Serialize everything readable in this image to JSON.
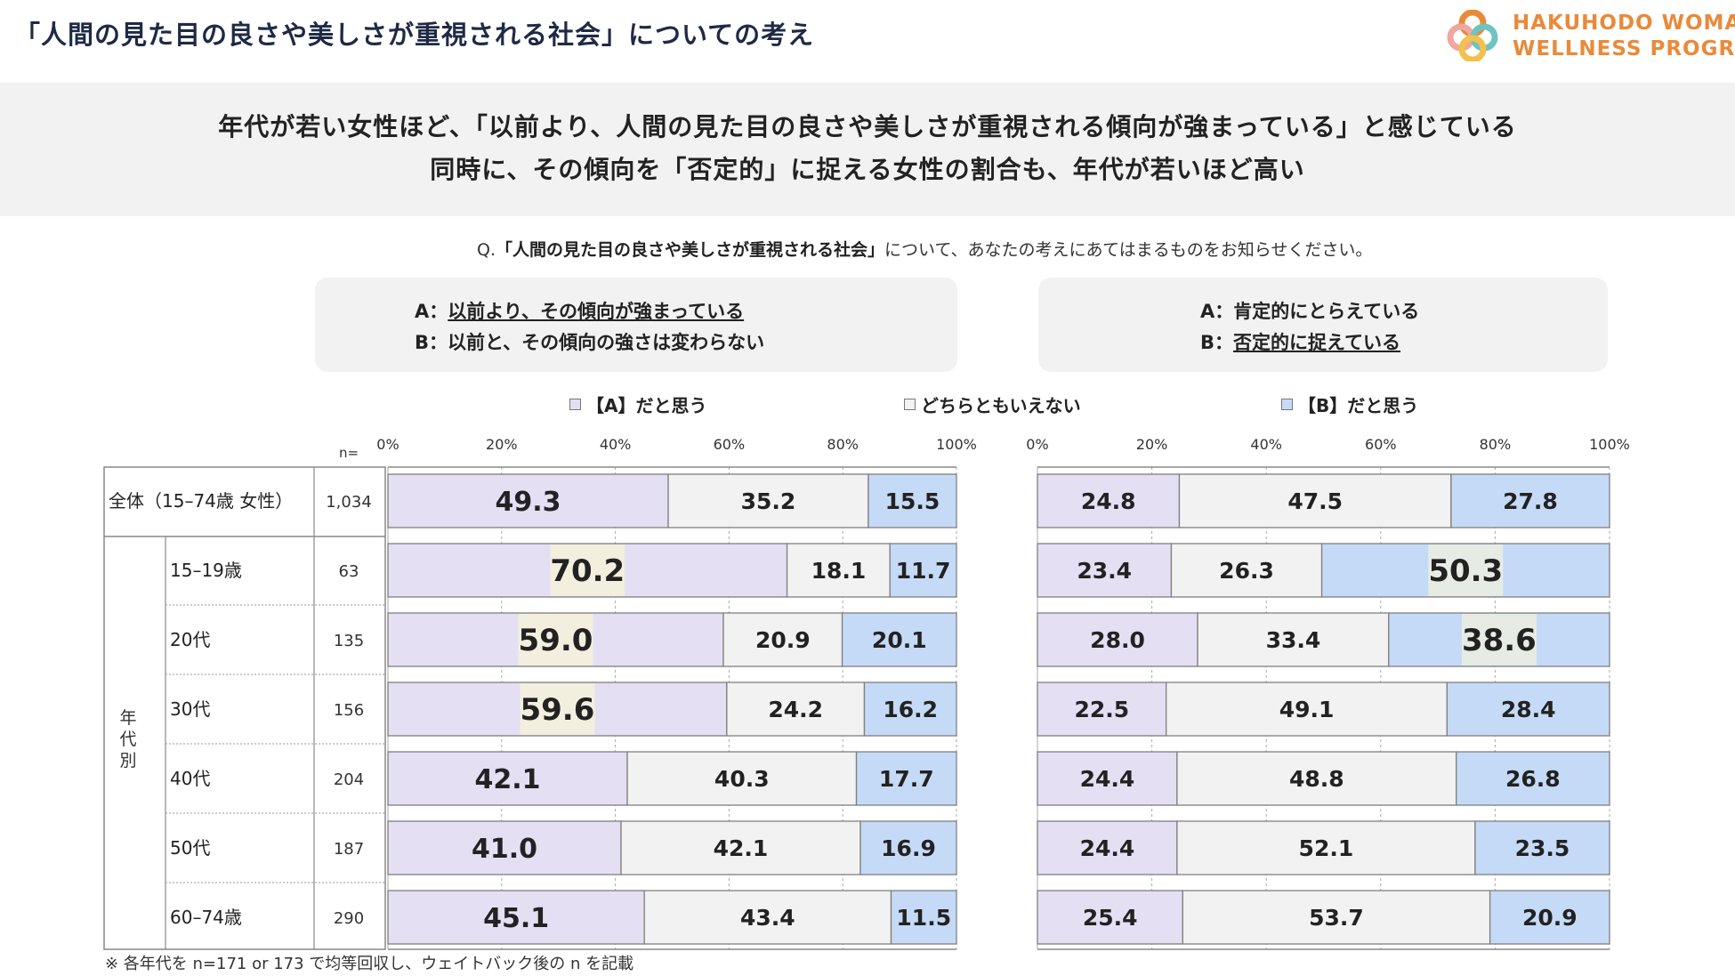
{
  "page_title": "「人間の見た目の良さや美しさが重視される社会」についての考え",
  "logo": {
    "line1": "HAKUHODO WOMAN",
    "line2": "WELLNESS PROGRAM"
  },
  "headline": {
    "line1": "年代が若い女性ほど、「以前より、人間の見た目の良さや美しさが重視される傾向が強まっている」と感じている",
    "line2": "同時に、その傾向を「否定的」に捉える女性の割合も、年代が若いほど高い"
  },
  "question": {
    "prefix": "Q.",
    "bold": "「人間の見た目の良さや美しさが重視される社会」",
    "rest": "について、あなたの考えにあてはまるものをお知らせください。"
  },
  "def_left": {
    "a_label": "A：",
    "a_text": "以前より、その傾向が強まっている",
    "b_label": "B：",
    "b_text": "以前と、その傾向の強さは変わらない"
  },
  "def_right": {
    "a_label": "A：",
    "a_text": "肯定的にとらえている",
    "b_label": "B：",
    "b_text": "否定的に捉えている"
  },
  "legend": {
    "a": "【A】だと思う",
    "mid": "どちらともいえない",
    "b": "【B】だと思う"
  },
  "colors": {
    "a": "#e4dff3",
    "mid": "#f2f2f2",
    "b": "#c5daf6",
    "highlight_a": "#f3efdf",
    "highlight_b": "#e6ebe4",
    "logo_orange": "#e98a3a"
  },
  "table": {
    "n_header": "n=",
    "group_label": "年代別",
    "note": "※ 各年代を n=171 or 173 で均等回収し、ウェイトバック後の n を記載"
  },
  "chart_data": [
    {
      "type": "bar",
      "orientation": "horizontal",
      "stacked": true,
      "percent": true,
      "xlim": [
        0,
        100
      ],
      "x_ticks": [
        "0%",
        "20%",
        "40%",
        "60%",
        "80%",
        "100%"
      ],
      "grid": true,
      "categories": [
        "全体（15–74歳 女性）",
        "15–19歳",
        "20代",
        "30代",
        "40代",
        "50代",
        "60–74歳"
      ],
      "n": [
        "1,034",
        "63",
        "135",
        "156",
        "204",
        "187",
        "290"
      ],
      "series": [
        {
          "name": "【A】だと思う",
          "values": [
            49.3,
            70.2,
            59.0,
            59.6,
            42.1,
            41.0,
            45.1
          ]
        },
        {
          "name": "どちらともいえない",
          "values": [
            35.2,
            18.1,
            20.9,
            24.2,
            40.3,
            42.1,
            43.4
          ]
        },
        {
          "name": "【B】だと思う",
          "values": [
            15.5,
            11.7,
            20.1,
            16.2,
            17.7,
            16.9,
            11.5
          ]
        }
      ],
      "highlighted": [
        [
          1,
          0
        ],
        [
          2,
          0
        ],
        [
          3,
          0
        ]
      ]
    },
    {
      "type": "bar",
      "orientation": "horizontal",
      "stacked": true,
      "percent": true,
      "xlim": [
        0,
        100
      ],
      "x_ticks": [
        "0%",
        "20%",
        "40%",
        "60%",
        "80%",
        "100%"
      ],
      "grid": true,
      "categories": [
        "全体（15–74歳 女性）",
        "15–19歳",
        "20代",
        "30代",
        "40代",
        "50代",
        "60–74歳"
      ],
      "series": [
        {
          "name": "【A】だと思う",
          "values": [
            24.8,
            23.4,
            28.0,
            22.5,
            24.4,
            24.4,
            25.4
          ]
        },
        {
          "name": "どちらともいえない",
          "values": [
            47.5,
            26.3,
            33.4,
            49.1,
            48.8,
            52.1,
            53.7
          ]
        },
        {
          "name": "【B】だと思う",
          "values": [
            27.8,
            50.3,
            38.6,
            28.4,
            26.8,
            23.5,
            20.9
          ]
        }
      ],
      "highlighted": [
        [
          1,
          2
        ],
        [
          2,
          2
        ]
      ]
    }
  ]
}
